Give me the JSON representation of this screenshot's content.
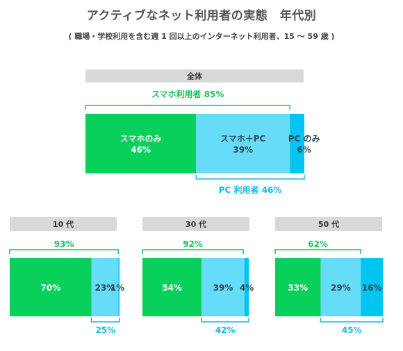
{
  "page": {
    "title": "アクティブなネット利用者の実態　年代別",
    "subtitle": "( 職場・学校利用を含む週 1 回以上のインターネット利用者、15 ～ 59 歳 )"
  },
  "colors": {
    "smartphone_only": "#08d05a",
    "both": "#66dcf8",
    "pc_only": "#00c4f2",
    "header_bg": "#d9d9d9",
    "green_text": "#18c45a",
    "blue_text": "#12b8ea"
  },
  "chart_data": [
    {
      "type": "bar",
      "title": "全体",
      "segments": [
        {
          "label": "スマホのみ",
          "value": 46,
          "value_label": "46%"
        },
        {
          "label": "スマホ＋PC",
          "value": 39,
          "value_label": "39%"
        },
        {
          "label": "PC のみ",
          "value": 6,
          "value_label": "6%"
        }
      ],
      "smartphone_users": {
        "label": "スマホ利用者 85%",
        "value": 85
      },
      "pc_users": {
        "label": "PC 利用者 46%",
        "value": 46
      }
    },
    {
      "type": "bar",
      "title": "10 代",
      "segments": [
        {
          "value": 70,
          "value_label": "70%"
        },
        {
          "value": 23,
          "value_label": "23%"
        },
        {
          "value": 1,
          "value_label": "1%"
        }
      ],
      "smartphone_users": {
        "label": "93%",
        "value": 93
      },
      "pc_users": {
        "label": "25%",
        "value": 25
      }
    },
    {
      "type": "bar",
      "title": "30 代",
      "segments": [
        {
          "value": 54,
          "value_label": "54%"
        },
        {
          "value": 39,
          "value_label": "39%"
        },
        {
          "value": 4,
          "value_label": "4%"
        }
      ],
      "smartphone_users": {
        "label": "92%",
        "value": 92
      },
      "pc_users": {
        "label": "42%",
        "value": 42
      }
    },
    {
      "type": "bar",
      "title": "50 代",
      "segments": [
        {
          "value": 33,
          "value_label": "33%"
        },
        {
          "value": 29,
          "value_label": "29%"
        },
        {
          "value": 16,
          "value_label": "16%"
        }
      ],
      "smartphone_users": {
        "label": "62%",
        "value": 62
      },
      "pc_users": {
        "label": "45%",
        "value": 45
      }
    }
  ]
}
